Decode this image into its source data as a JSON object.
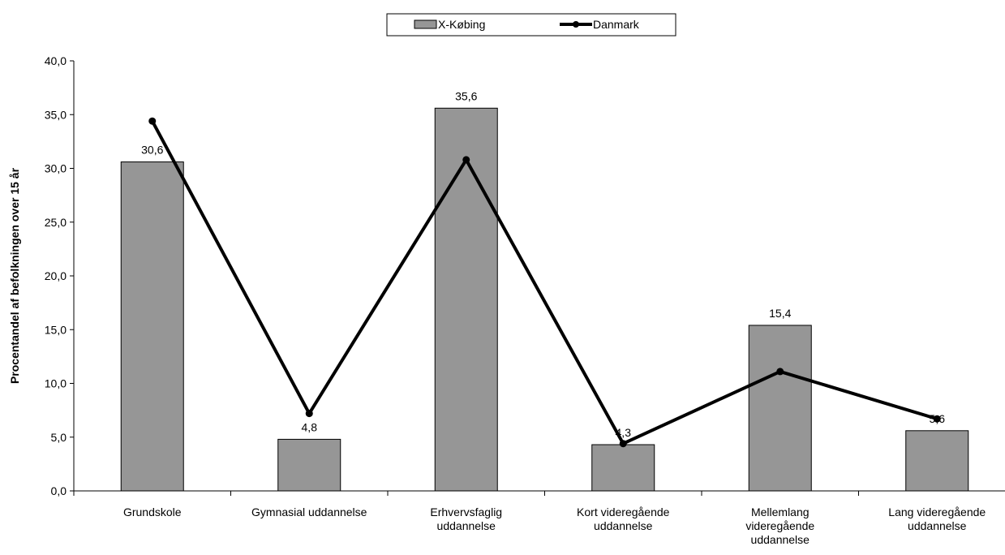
{
  "chart_data": {
    "type": "bar",
    "title": "",
    "xlabel": "",
    "ylabel": "Procentandel af befolkningen over 15 år",
    "ylim": [
      0,
      40
    ],
    "y_ticks": [
      "0,0",
      "5,0",
      "10,0",
      "15,0",
      "20,0",
      "25,0",
      "30,0",
      "35,0",
      "40,0"
    ],
    "grid": false,
    "legend_position": "top-center",
    "categories": [
      [
        "Grundskole"
      ],
      [
        "Gymnasial uddannelse"
      ],
      [
        "Erhvervsfaglig",
        "uddannelse"
      ],
      [
        "Kort videregående",
        "uddannelse"
      ],
      [
        "Mellemlang",
        "videregående",
        "uddannelse"
      ],
      [
        "Lang videregående",
        "uddannelse"
      ]
    ],
    "series": [
      {
        "name": "X-Købing",
        "type": "bar",
        "color": "#969696",
        "values": [
          30.6,
          4.8,
          35.6,
          4.3,
          15.4,
          5.6
        ],
        "labels": [
          "30,6",
          "4,8",
          "35,6",
          "4,3",
          "15,4",
          "5,6"
        ]
      },
      {
        "name": "Danmark",
        "type": "line",
        "color": "#000000",
        "values": [
          34.4,
          7.2,
          30.8,
          4.4,
          11.1,
          6.7
        ]
      }
    ]
  }
}
